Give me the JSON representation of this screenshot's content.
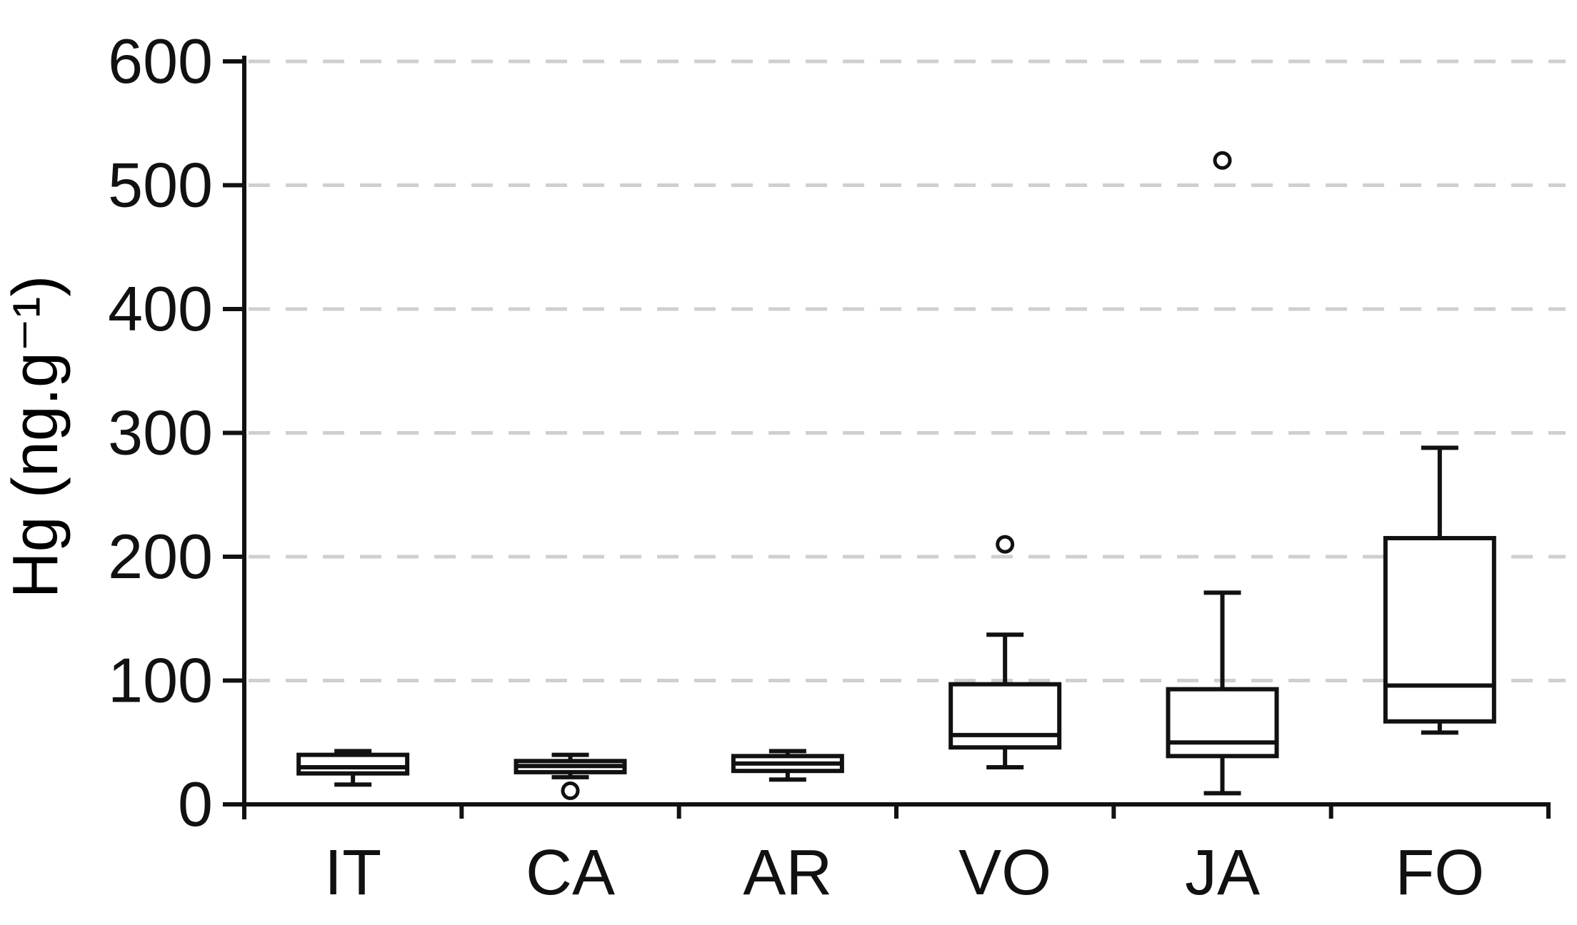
{
  "chart_data": {
    "type": "boxplot",
    "title": "",
    "ylabel": "Hg (ng.g⁻¹)",
    "xlabel": "",
    "ylim": [
      0,
      600
    ],
    "yticks": [
      0,
      100,
      200,
      300,
      400,
      500,
      600
    ],
    "grid": "horizontal dashed lines at y ticks above 0",
    "legend": "none",
    "categories": [
      "IT",
      "CA",
      "AR",
      "VO",
      "JA",
      "FO"
    ],
    "series": [
      {
        "name": "IT",
        "min": 16,
        "q1": 25,
        "median": 30,
        "q3": 40,
        "max": 43,
        "outliers": []
      },
      {
        "name": "CA",
        "min": 22,
        "q1": 26,
        "median": 31,
        "q3": 35,
        "max": 40,
        "outliers": [
          11
        ]
      },
      {
        "name": "AR",
        "min": 20,
        "q1": 27,
        "median": 33,
        "q3": 39,
        "max": 43,
        "outliers": []
      },
      {
        "name": "VO",
        "min": 30,
        "q1": 46,
        "median": 56,
        "q3": 97,
        "max": 137,
        "outliers": [
          210
        ]
      },
      {
        "name": "JA",
        "min": 9,
        "q1": 39,
        "median": 50,
        "q3": 93,
        "max": 171,
        "outliers": [
          520
        ]
      },
      {
        "name": "FO",
        "min": 58,
        "q1": 67,
        "median": 96,
        "q3": 215,
        "max": 288,
        "outliers": []
      }
    ],
    "colors": {
      "ink": "#111111",
      "grid": "#cfcfcf",
      "box_fill": "#ffffff",
      "background": "#ffffff"
    }
  }
}
